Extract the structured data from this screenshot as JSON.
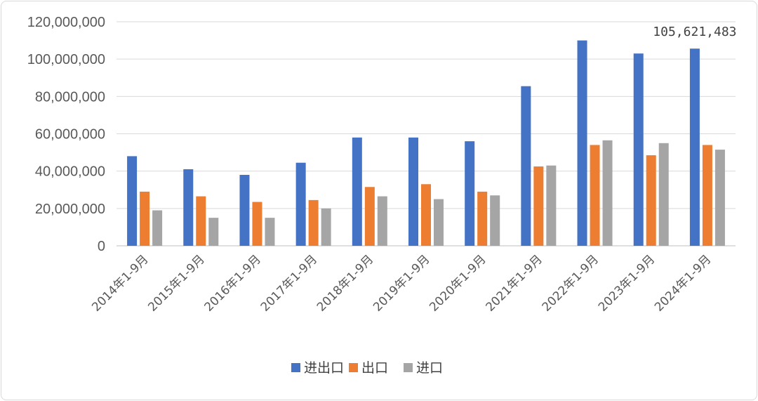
{
  "chart_data": {
    "type": "bar",
    "title": "",
    "xlabel": "",
    "ylabel": "",
    "ylim": [
      0,
      120000000
    ],
    "ytick_step": 20000000,
    "yticks": [
      "0",
      "20,000,000",
      "40,000,000",
      "60,000,000",
      "80,000,000",
      "100,000,000",
      "120,000,000"
    ],
    "grid": true,
    "legend_position": "bottom",
    "categories": [
      "2014年1-9月",
      "2015年1-9月",
      "2016年1-9月",
      "2017年1-9月",
      "2018年1-9月",
      "2019年1-9月",
      "2020年1-9月",
      "2021年1-9月",
      "2022年1-9月",
      "2023年1-9月",
      "2024年1-9月"
    ],
    "series": [
      {
        "name": "进出口",
        "color": "#4472c4",
        "values": [
          48000000,
          41000000,
          38000000,
          44500000,
          58000000,
          58000000,
          56000000,
          85500000,
          110000000,
          103000000,
          105621483
        ]
      },
      {
        "name": "出口",
        "color": "#ed7d31",
        "values": [
          29000000,
          26500000,
          23500000,
          24500000,
          31500000,
          33000000,
          29000000,
          42500000,
          54000000,
          48500000,
          54000000
        ]
      },
      {
        "name": "进口",
        "color": "#a5a5a5",
        "values": [
          19000000,
          15000000,
          15000000,
          20000000,
          26500000,
          25000000,
          27000000,
          43000000,
          56500000,
          55000000,
          51500000
        ]
      }
    ],
    "annotations": [
      {
        "text": "105,621,483",
        "category_index": 10,
        "series_index": 0
      }
    ]
  }
}
